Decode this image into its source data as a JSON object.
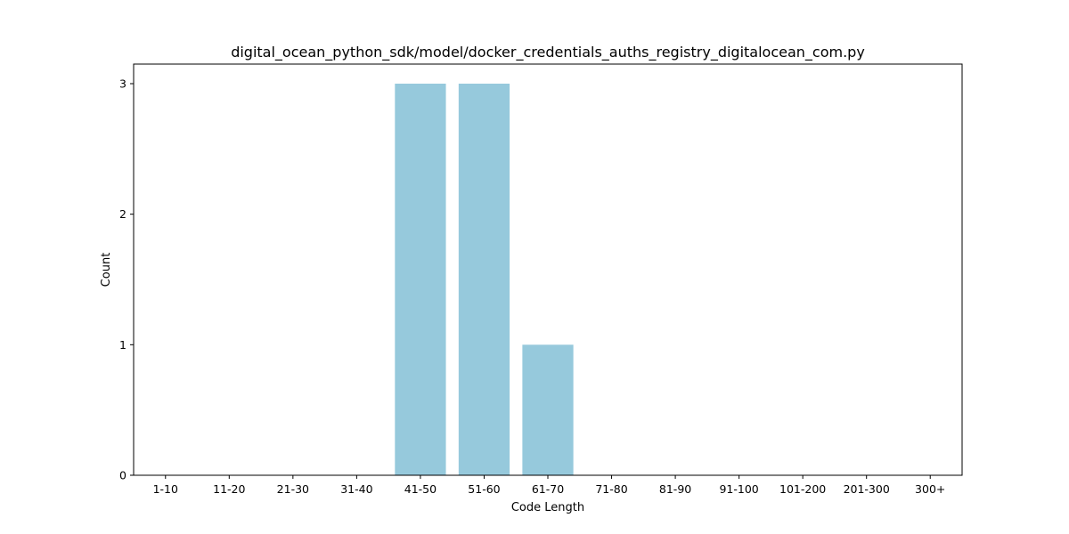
{
  "chart_data": {
    "type": "bar",
    "title": "digital_ocean_python_sdk/model/docker_credentials_auths_registry_digitalocean_com.py",
    "xlabel": "Code Length",
    "ylabel": "Count",
    "categories": [
      "1-10",
      "11-20",
      "21-30",
      "31-40",
      "41-50",
      "51-60",
      "61-70",
      "71-80",
      "81-90",
      "91-100",
      "101-200",
      "201-300",
      "300+"
    ],
    "values": [
      0,
      0,
      0,
      0,
      3,
      3,
      1,
      0,
      0,
      0,
      0,
      0,
      0
    ],
    "ylim": [
      0,
      3.15
    ],
    "yticks": [
      0,
      1,
      2,
      3
    ],
    "bar_color": "#96c9dc",
    "grid": false,
    "legend": "none"
  }
}
